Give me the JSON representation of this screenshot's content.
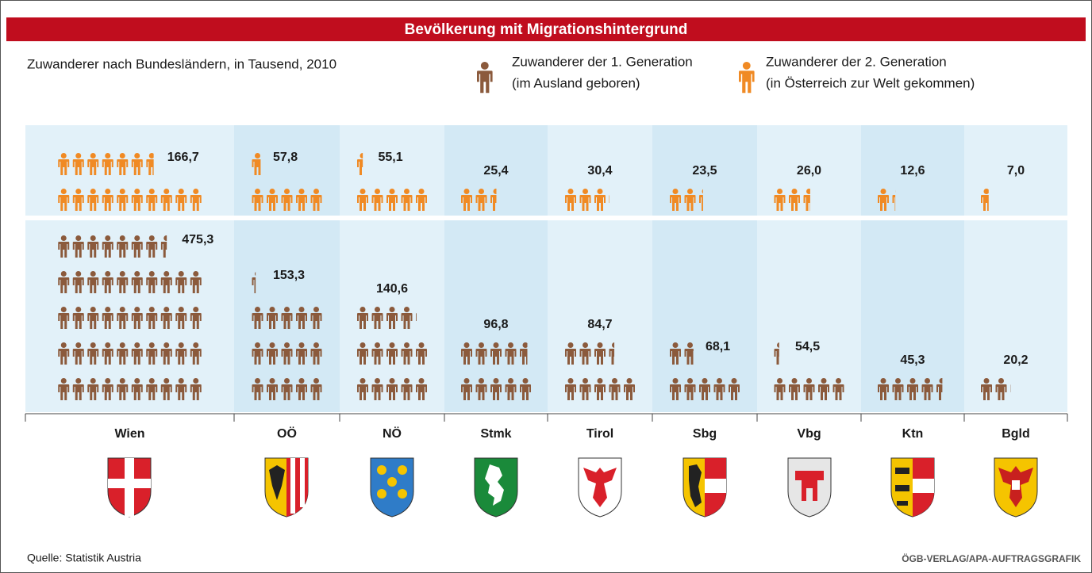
{
  "chart_data": {
    "type": "isotype",
    "title": "Bevölkerung mit Migrationshintergrund",
    "subtitle": "Zuwanderer nach Bundesländern, in Tausend, 2010",
    "source": "Quelle: Statistik Austria",
    "credit": "ÖGB-VERLAG/APA-AUFTRAGSGRAFIK",
    "categories": [
      "Wien",
      "OÖ",
      "NÖ",
      "Stmk",
      "Tirol",
      "Sbg",
      "Vbg",
      "Ktn",
      "Bgld"
    ],
    "series": [
      {
        "name": "Zuwanderer der 1. Generation",
        "description": "(im Ausland geboren)",
        "color": "#8b5a3c",
        "values": [
          475.3,
          153.3,
          140.6,
          96.8,
          84.7,
          68.1,
          54.5,
          45.3,
          20.2
        ],
        "value_labels": [
          "475,3",
          "153,3",
          "140,6",
          "96,8",
          "84,7",
          "68,1",
          "54,5",
          "45,3",
          "20,2"
        ]
      },
      {
        "name": "Zuwanderer der 2. Generation",
        "description": "(in Österreich zur Welt gekommen)",
        "color": "#f08a24",
        "values": [
          166.7,
          57.8,
          55.1,
          25.4,
          30.4,
          23.5,
          26.0,
          12.6,
          7.0
        ],
        "value_labels": [
          "166,7",
          "57,8",
          "55,1",
          "25,4",
          "30,4",
          "23,5",
          "26,0",
          "12,6",
          "7,0"
        ]
      }
    ]
  }
}
